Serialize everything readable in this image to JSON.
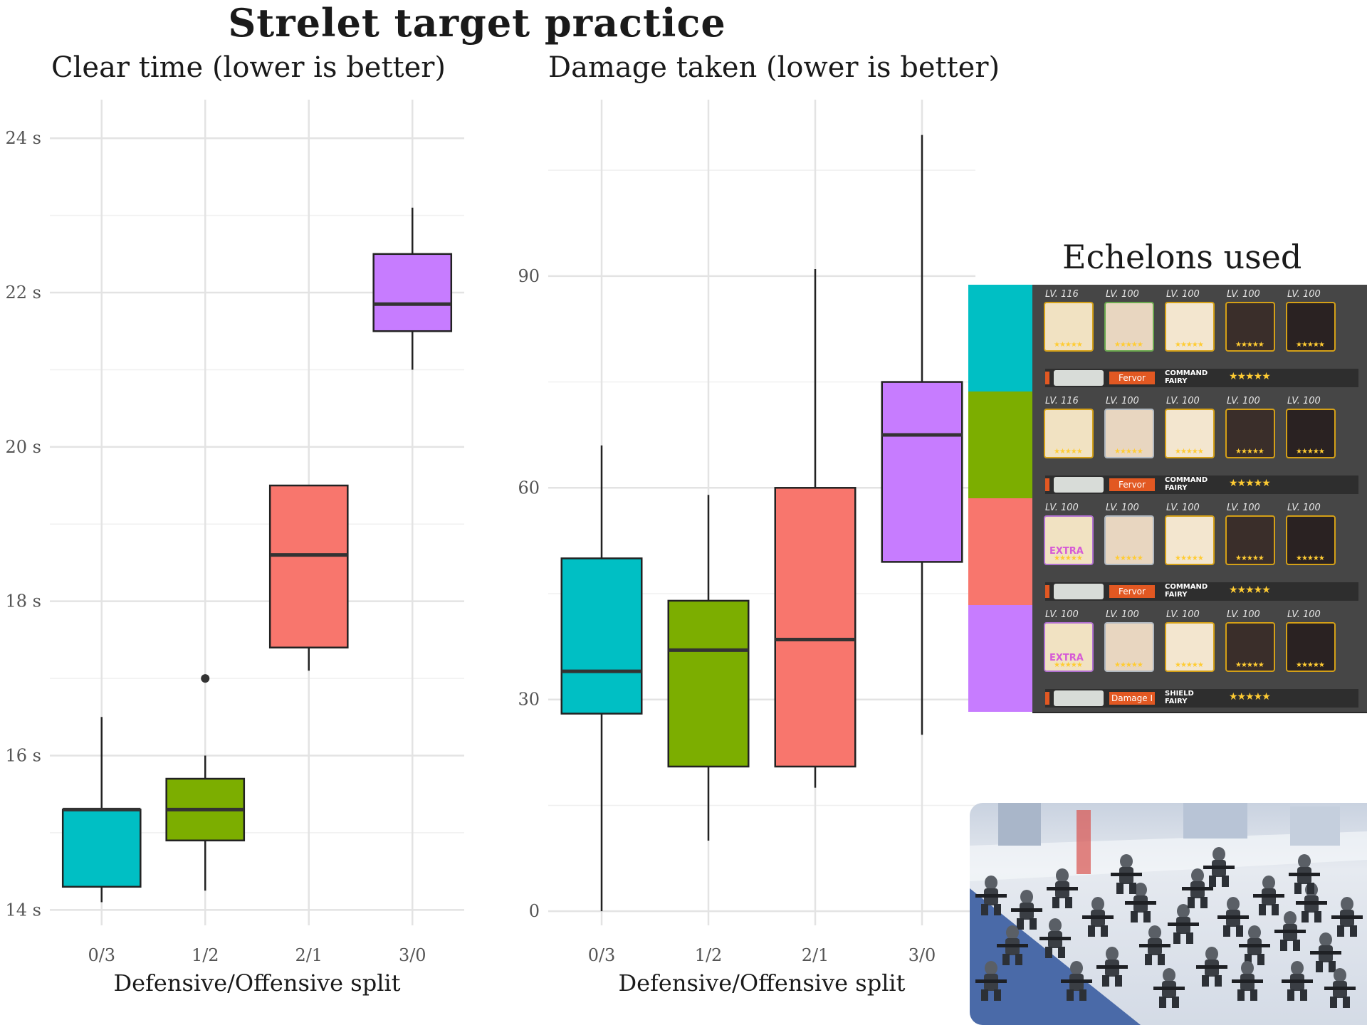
{
  "title": "Strelet target practice",
  "echelons_title": "Echelons used",
  "chart_data": [
    {
      "type": "box",
      "title": "Clear time (lower is better)",
      "xlabel": "Defensive/Offensive split",
      "ylabel": "",
      "categories": [
        "0/3",
        "1/2",
        "2/1",
        "3/0"
      ],
      "colors": [
        "#00BFC4",
        "#7CAE00",
        "#F8766D",
        "#C77CFF"
      ],
      "boxes": [
        {
          "category": "0/3",
          "whisker_low": 14.1,
          "q1": 14.3,
          "median": 15.3,
          "q3": 15.3,
          "whisker_high": 16.5,
          "outliers": []
        },
        {
          "category": "1/2",
          "whisker_low": 14.25,
          "q1": 14.9,
          "median": 15.3,
          "q3": 15.7,
          "whisker_high": 16.0,
          "outliers": [
            17.0
          ]
        },
        {
          "category": "2/1",
          "whisker_low": 17.1,
          "q1": 17.4,
          "median": 18.6,
          "q3": 19.5,
          "whisker_high": 19.5,
          "outliers": []
        },
        {
          "category": "3/0",
          "whisker_low": 21.0,
          "q1": 21.5,
          "median": 21.85,
          "q3": 22.5,
          "whisker_high": 23.1,
          "outliers": []
        }
      ],
      "ylim": [
        13.8,
        24.5
      ],
      "y_ticks": [
        14,
        16,
        18,
        20,
        22,
        24
      ],
      "y_tick_labels": [
        "14 s",
        "16 s",
        "18 s",
        "20 s",
        "22 s",
        "24 s"
      ],
      "grid": true
    },
    {
      "type": "box",
      "title": "Damage taken (lower is better)",
      "xlabel": "Defensive/Offensive split",
      "ylabel": "",
      "categories": [
        "0/3",
        "1/2",
        "2/1",
        "3/0"
      ],
      "colors": [
        "#00BFC4",
        "#7CAE00",
        "#F8766D",
        "#C77CFF"
      ],
      "boxes": [
        {
          "category": "0/3",
          "whisker_low": 0,
          "q1": 28,
          "median": 34,
          "q3": 50,
          "whisker_high": 66,
          "outliers": []
        },
        {
          "category": "1/2",
          "whisker_low": 10,
          "q1": 20.5,
          "median": 37,
          "q3": 44,
          "whisker_high": 59,
          "outliers": []
        },
        {
          "category": "2/1",
          "whisker_low": 17.5,
          "q1": 20.5,
          "median": 38.5,
          "q3": 60,
          "whisker_high": 91,
          "outliers": []
        },
        {
          "category": "3/0",
          "whisker_low": 25,
          "q1": 49.5,
          "median": 67.5,
          "q3": 75,
          "whisker_high": 110,
          "outliers": []
        }
      ],
      "ylim": [
        -2,
        115
      ],
      "y_ticks": [
        0,
        30,
        60,
        90
      ],
      "y_tick_labels": [
        "0",
        "30",
        "60",
        "90"
      ],
      "grid": true
    }
  ],
  "echelons": [
    {
      "color": "#00BFC4",
      "dolls": [
        {
          "lv": "LV. 116",
          "frame": "gold"
        },
        {
          "lv": "LV. 100",
          "frame": "green"
        },
        {
          "lv": "LV. 100",
          "frame": "gold"
        },
        {
          "lv": "LV. 100",
          "frame": "gold"
        },
        {
          "lv": "LV. 100",
          "frame": "gold"
        }
      ],
      "fairy": {
        "name": "Fervor",
        "type_line1": "COMMAND",
        "type_line2": "FAIRY",
        "stars": "★★★★★"
      }
    },
    {
      "color": "#7CAE00",
      "dolls": [
        {
          "lv": "LV. 116",
          "frame": "gold"
        },
        {
          "lv": "LV. 100",
          "frame": "silver"
        },
        {
          "lv": "LV. 100",
          "frame": "gold"
        },
        {
          "lv": "LV. 100",
          "frame": "gold"
        },
        {
          "lv": "LV. 100",
          "frame": "gold"
        }
      ],
      "fairy": {
        "name": "Fervor",
        "type_line1": "COMMAND",
        "type_line2": "FAIRY",
        "stars": "★★★★★"
      }
    },
    {
      "color": "#F8766D",
      "dolls": [
        {
          "lv": "LV. 100",
          "frame": "purple",
          "tag": "EXTRA"
        },
        {
          "lv": "LV. 100",
          "frame": "silver"
        },
        {
          "lv": "LV. 100",
          "frame": "gold"
        },
        {
          "lv": "LV. 100",
          "frame": "gold"
        },
        {
          "lv": "LV. 100",
          "frame": "gold"
        }
      ],
      "fairy": {
        "name": "Fervor",
        "type_line1": "COMMAND",
        "type_line2": "FAIRY",
        "stars": "★★★★★"
      }
    },
    {
      "color": "#C77CFF",
      "dolls": [
        {
          "lv": "LV. 100",
          "frame": "purple",
          "tag": "EXTRA"
        },
        {
          "lv": "LV. 100",
          "frame": "silver"
        },
        {
          "lv": "LV. 100",
          "frame": "gold"
        },
        {
          "lv": "LV. 100",
          "frame": "gold"
        },
        {
          "lv": "LV. 100",
          "frame": "gold"
        }
      ],
      "fairy": {
        "name": "Damage I",
        "type_line1": "SHIELD",
        "type_line2": "FAIRY",
        "stars": "★★★★★"
      }
    }
  ]
}
